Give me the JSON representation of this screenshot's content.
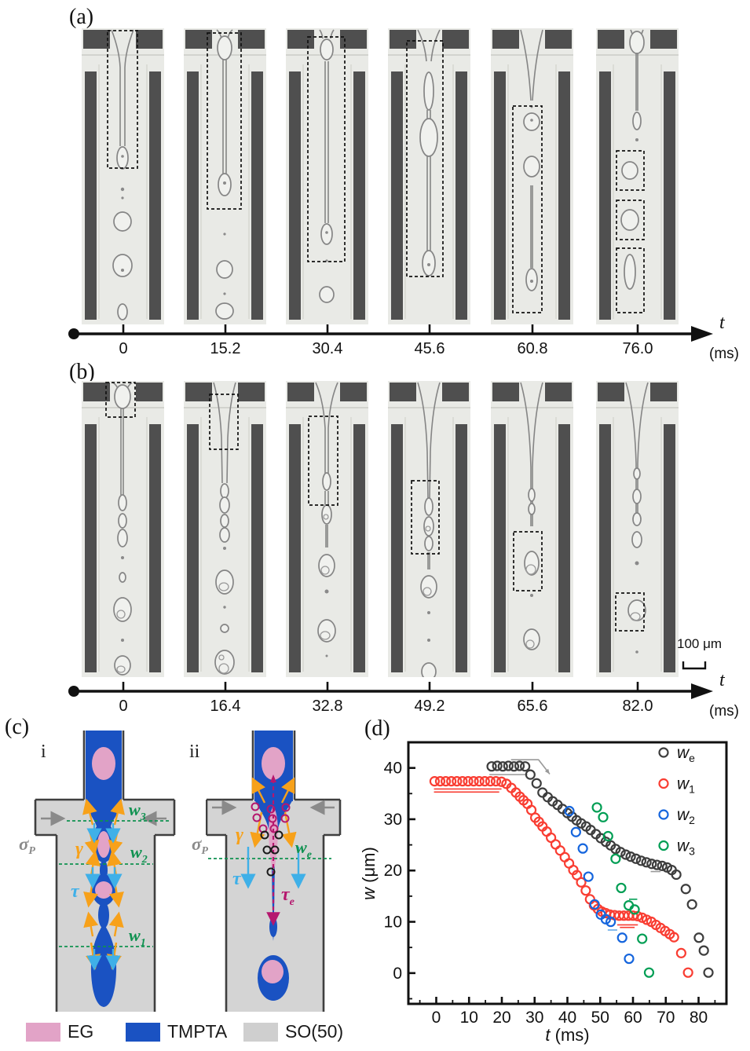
{
  "figure": {
    "panels": {
      "a": {
        "label": "(a)"
      },
      "b": {
        "label": "(b)"
      },
      "c": {
        "label": "(c)",
        "sub_i": "i",
        "sub_ii": "ii"
      },
      "d": {
        "label": "(d)"
      }
    },
    "timeline_a": {
      "ticks": [
        "0",
        "15.2",
        "30.4",
        "45.6",
        "60.8",
        "76.0"
      ],
      "symbol": "t",
      "unit": "(ms)"
    },
    "timeline_b": {
      "ticks": [
        "0",
        "16.4",
        "32.8",
        "49.2",
        "65.6",
        "82.0"
      ],
      "symbol": "t",
      "unit": "(ms)"
    },
    "scale_bar": {
      "label": "100 μm"
    },
    "schematic": {
      "sigma": {
        "base": "σ",
        "sub": "P"
      },
      "gamma": "γ",
      "tau": "τ",
      "tau_e": {
        "base": "τ",
        "sub": "e"
      },
      "w1": {
        "base": "w",
        "sub": "1"
      },
      "w2": {
        "base": "w",
        "sub": "2"
      },
      "w3": {
        "base": "w",
        "sub": "3"
      },
      "we": {
        "base": "w",
        "sub": "e"
      },
      "colors": {
        "eg_pink": "#e2a3c7",
        "tmpta_blue": "#1a52c2",
        "so_gray": "#d4d4d4",
        "gamma_orange": "#f7a11a",
        "tau_cyan": "#3fb0e8",
        "tau_e_magenta": "#b5176e",
        "w_green": "#0f9150",
        "sigma_gray": "#8a8a8a"
      }
    },
    "legend": [
      {
        "label": "EG",
        "color": "#e2a3c7"
      },
      {
        "label": "TMPTA",
        "color": "#1a52c2"
      },
      {
        "label": "SO(50)",
        "color": "#cfcfcf"
      }
    ]
  },
  "chart_data": {
    "type": "scatter",
    "title": "",
    "xlabel_italic": "t",
    "xlabel_unit": "(ms)",
    "ylabel_italic": "w",
    "ylabel_unit": "(μm)",
    "xlim": [
      -8.5,
      88.5
    ],
    "ylim": [
      -6,
      45
    ],
    "xticks": [
      0,
      10,
      20,
      30,
      40,
      50,
      60,
      70,
      80
    ],
    "yticks": [
      0,
      10,
      20,
      30,
      40
    ],
    "minor_step": 5,
    "grid": false,
    "legend_position": "top-right",
    "series": [
      {
        "name": "w_e",
        "label_base": "w",
        "label_sub": "e",
        "color": "#3d3d3d",
        "points": [
          [
            16.9,
            40.3
          ],
          [
            18.6,
            40.4
          ],
          [
            20.3,
            40.3
          ],
          [
            22.0,
            40.4
          ],
          [
            23.7,
            40.3
          ],
          [
            25.4,
            40.4
          ],
          [
            27.1,
            40.3
          ],
          [
            28.7,
            38.7
          ],
          [
            30.6,
            37.0
          ],
          [
            32.4,
            35.2
          ],
          [
            34.0,
            34.3
          ],
          [
            35.5,
            33.5
          ],
          [
            37.0,
            32.8
          ],
          [
            38.5,
            32.0
          ],
          [
            40.0,
            31.2
          ],
          [
            41.4,
            30.5
          ],
          [
            42.8,
            29.8
          ],
          [
            44.2,
            29.2
          ],
          [
            45.7,
            28.6
          ],
          [
            47.1,
            27.9
          ],
          [
            48.7,
            27.1
          ],
          [
            50.2,
            26.3
          ],
          [
            51.7,
            25.6
          ],
          [
            53.2,
            24.9
          ],
          [
            54.7,
            24.2
          ],
          [
            56.2,
            23.6
          ],
          [
            57.8,
            23.1
          ],
          [
            59.3,
            22.7
          ],
          [
            60.9,
            22.3
          ],
          [
            62.5,
            21.9
          ],
          [
            64.1,
            21.6
          ],
          [
            65.7,
            21.3
          ],
          [
            67.3,
            21.1
          ],
          [
            68.9,
            20.9
          ],
          [
            70.4,
            20.6
          ],
          [
            71.8,
            20.1
          ],
          [
            73.2,
            19.2
          ],
          [
            76.1,
            16.4
          ],
          [
            78.0,
            13.4
          ],
          [
            80.1,
            6.9
          ],
          [
            81.6,
            4.4
          ],
          [
            83.0,
            0.1
          ]
        ]
      },
      {
        "name": "w_1",
        "label_base": "w",
        "label_sub": "1",
        "color": "#f93d32",
        "points": [
          [
            -0.5,
            37.4
          ],
          [
            1.2,
            37.4
          ],
          [
            2.9,
            37.4
          ],
          [
            4.6,
            37.4
          ],
          [
            6.3,
            37.4
          ],
          [
            8.0,
            37.4
          ],
          [
            9.7,
            37.4
          ],
          [
            11.4,
            37.4
          ],
          [
            13.1,
            37.4
          ],
          [
            14.8,
            37.4
          ],
          [
            16.5,
            37.4
          ],
          [
            18.2,
            37.4
          ],
          [
            19.9,
            37.3
          ],
          [
            21.4,
            36.9
          ],
          [
            22.9,
            36.1
          ],
          [
            24.3,
            35.2
          ],
          [
            25.5,
            34.4
          ],
          [
            26.6,
            33.7
          ],
          [
            27.8,
            33.0
          ],
          [
            29.0,
            31.8
          ],
          [
            30.2,
            30.3
          ],
          [
            31.3,
            29.5
          ],
          [
            32.4,
            28.6
          ],
          [
            33.7,
            27.6
          ],
          [
            35.0,
            26.4
          ],
          [
            36.4,
            25.1
          ],
          [
            37.8,
            23.9
          ],
          [
            39.2,
            22.6
          ],
          [
            40.5,
            21.4
          ],
          [
            41.8,
            20.1
          ],
          [
            42.9,
            19.1
          ],
          [
            44.2,
            17.7
          ],
          [
            45.6,
            16.1
          ],
          [
            46.9,
            14.4
          ],
          [
            48.1,
            13.2
          ],
          [
            49.3,
            12.5
          ],
          [
            50.5,
            12.0
          ],
          [
            51.7,
            11.7
          ],
          [
            53.0,
            11.4
          ],
          [
            54.4,
            11.3
          ],
          [
            55.8,
            11.2
          ],
          [
            57.2,
            11.2
          ],
          [
            58.6,
            11.2
          ],
          [
            60.0,
            11.2
          ],
          [
            61.4,
            11.1
          ],
          [
            62.8,
            10.8
          ],
          [
            64.2,
            10.4
          ],
          [
            65.6,
            10.0
          ],
          [
            67.0,
            9.4
          ],
          [
            68.4,
            8.8
          ],
          [
            69.8,
            8.2
          ],
          [
            71.2,
            7.6
          ],
          [
            72.5,
            7.0
          ],
          [
            74.7,
            3.9
          ],
          [
            76.8,
            0.1
          ]
        ]
      },
      {
        "name": "w_2",
        "label_base": "w",
        "label_sub": "2",
        "color": "#1565dd",
        "points": [
          [
            40.6,
            31.6
          ],
          [
            42.6,
            27.5
          ],
          [
            44.7,
            24.3
          ],
          [
            46.4,
            18.8
          ],
          [
            48.3,
            13.4
          ],
          [
            50.2,
            11.4
          ],
          [
            51.7,
            10.5
          ],
          [
            53.2,
            10.0
          ],
          [
            56.7,
            6.9
          ],
          [
            58.8,
            2.8
          ]
        ]
      },
      {
        "name": "w_3",
        "label_base": "w",
        "label_sub": "3",
        "color": "#009e54",
        "points": [
          [
            49.0,
            32.3
          ],
          [
            50.9,
            30.4
          ],
          [
            52.4,
            26.7
          ],
          [
            54.7,
            22.3
          ],
          [
            56.4,
            16.6
          ],
          [
            58.7,
            13.2
          ],
          [
            60.5,
            12.4
          ],
          [
            62.8,
            6.7
          ],
          [
            64.9,
            0.1
          ]
        ]
      }
    ],
    "annotations": [
      {
        "type": "line",
        "color": "#f93d32",
        "x1": -0.7,
        "x2": 19.9,
        "y": 35.9
      },
      {
        "type": "line",
        "color": "#f93d32",
        "x1": -0.7,
        "x2": 19.2,
        "y": 35.3
      },
      {
        "type": "line",
        "color": "#999999",
        "x1": 16.2,
        "x2": 27.8,
        "y": 38.7
      },
      {
        "type": "arrow",
        "color": "#999999",
        "path": [
          [
            22.8,
            41.6
          ],
          [
            31.2,
            41.6
          ],
          [
            34.6,
            38.8
          ]
        ]
      },
      {
        "type": "line",
        "color": "#999999",
        "x1": 65.4,
        "x2": 68.4,
        "y": 19.8
      },
      {
        "type": "line",
        "color": "#f93d32",
        "x1": 55.2,
        "x2": 61.5,
        "y": 9.4
      },
      {
        "type": "line",
        "color": "#f93d32",
        "x1": 56.0,
        "x2": 60.5,
        "y": 8.9
      },
      {
        "type": "line",
        "color": "#64a8e8",
        "x1": 52.3,
        "x2": 55.2,
        "y": 8.4
      },
      {
        "type": "line",
        "color": "#009e54",
        "x1": 58.8,
        "x2": 61.3,
        "y": 14.4
      }
    ]
  }
}
